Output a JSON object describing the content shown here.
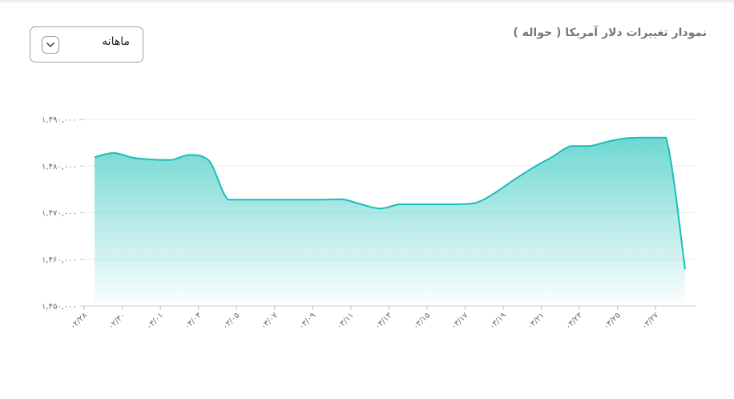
{
  "header": {
    "title": "نمودار تغییرات دلار آمریکا ( حواله )"
  },
  "period_select": {
    "value": "ماهانه",
    "icon": "chevron-down-icon"
  },
  "colors": {
    "line": "#17bfb8",
    "fill_top": "#5fd3cd",
    "grid": "#ededed",
    "tick_text": "#5f6b76"
  },
  "chart_data": {
    "type": "area",
    "title": "نمودار تغییرات دلار آمریکا ( حواله )",
    "xlabel": "",
    "ylabel": "",
    "ylim": [
      1450000,
      1490000
    ],
    "y_ticks": [
      "۱,۴۵۰,۰۰۰",
      "۱,۴۶۰,۰۰۰",
      "۱,۴۷۰,۰۰۰",
      "۱,۴۸۰,۰۰۰",
      "۱,۴۹۰,۰۰۰"
    ],
    "y_tick_values": [
      1450000,
      1460000,
      1470000,
      1480000,
      1490000
    ],
    "x_tick_labels": [
      "۰۲/۲۸",
      "۰۲/۳۰",
      "۰۳/۰۱",
      "۰۳/۰۳",
      "۰۳/۰۵",
      "۰۳/۰۷",
      "۰۳/۰۹",
      "۰۳/۱۱",
      "۰۳/۱۳",
      "۰۳/۱۵",
      "۰۳/۱۷",
      "۰۳/۱۹",
      "۰۳/۲۱",
      "۰۳/۲۳",
      "۰۳/۲۵",
      "۰۳/۲۷"
    ],
    "x_tick_index": [
      0,
      2,
      4,
      6,
      8,
      10,
      12,
      14,
      16,
      18,
      20,
      22,
      24,
      26,
      28,
      30
    ],
    "grid": true,
    "legend": "none",
    "series": [
      {
        "values": [
          1481900,
          1482800,
          1481800,
          1481400,
          1481300,
          1482400,
          1481200,
          1472800,
          1472800,
          1472800,
          1472800,
          1472800,
          1472800,
          1472900,
          1471800,
          1470900,
          1471800,
          1471800,
          1471800,
          1471800,
          1472100,
          1474200,
          1477000,
          1479600,
          1481900,
          1484300,
          1484300,
          1485300,
          1486000,
          1486100,
          1486100,
          1457900
        ]
      }
    ]
  }
}
